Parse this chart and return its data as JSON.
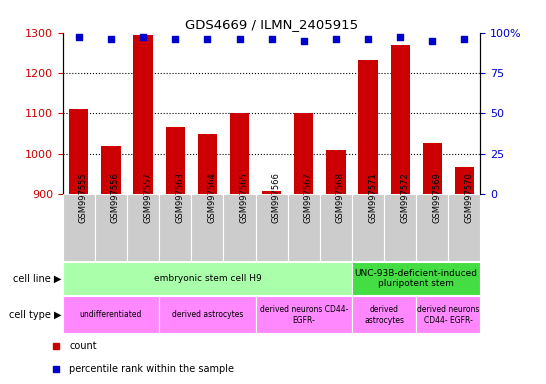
{
  "title": "GDS4669 / ILMN_2405915",
  "samples": [
    "GSM997555",
    "GSM997556",
    "GSM997557",
    "GSM997563",
    "GSM997564",
    "GSM997565",
    "GSM997566",
    "GSM997567",
    "GSM997568",
    "GSM997571",
    "GSM997572",
    "GSM997569",
    "GSM997570"
  ],
  "counts": [
    1110,
    1020,
    1295,
    1065,
    1048,
    1100,
    907,
    1100,
    1010,
    1232,
    1270,
    1026,
    968
  ],
  "percentiles": [
    97,
    96,
    97,
    96,
    96,
    96,
    96,
    95,
    96,
    96,
    97,
    95,
    96
  ],
  "ylim": [
    900,
    1300
  ],
  "yticks": [
    900,
    1000,
    1100,
    1200,
    1300
  ],
  "right_yticks": [
    0,
    25,
    50,
    75,
    100
  ],
  "bar_color": "#cc0000",
  "dot_color": "#0000cc",
  "bar_width": 0.6,
  "cell_line_groups": [
    {
      "label": "embryonic stem cell H9",
      "start": 0,
      "end": 9,
      "color": "#aaffaa"
    },
    {
      "label": "UNC-93B-deficient-induced\npluripotent stem",
      "start": 9,
      "end": 13,
      "color": "#44dd44"
    }
  ],
  "cell_type_groups": [
    {
      "label": "undifferentiated",
      "start": 0,
      "end": 3
    },
    {
      "label": "derived astrocytes",
      "start": 3,
      "end": 6
    },
    {
      "label": "derived neurons CD44-\nEGFR-",
      "start": 6,
      "end": 9
    },
    {
      "label": "derived\nastrocytes",
      "start": 9,
      "end": 11
    },
    {
      "label": "derived neurons\nCD44- EGFR-",
      "start": 11,
      "end": 13
    }
  ],
  "cell_type_color": "#ff88ff",
  "gray_box_color": "#cccccc",
  "legend_items": [
    {
      "label": "count",
      "color": "#cc0000"
    },
    {
      "label": "percentile rank within the sample",
      "color": "#0000cc"
    }
  ]
}
